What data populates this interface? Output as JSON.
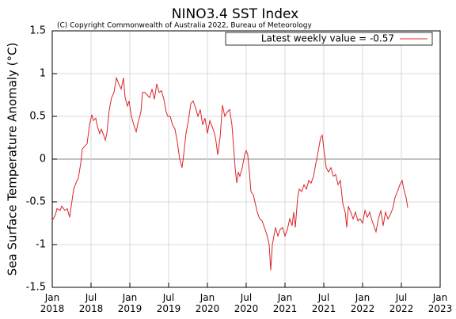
{
  "chart_data": {
    "type": "line",
    "title": "NINO3.4 SST Index",
    "subtitle": "(C) Copyright Commonwealth of Australia 2022, Bureau of Meteorology",
    "ylabel": "Sea Surface Temperature Anomaly (°C)",
    "xlim": [
      2018,
      2023
    ],
    "ylim": [
      -1.5,
      1.5
    ],
    "yticks": [
      -1.5,
      -1,
      -0.5,
      0,
      0.5,
      1,
      1.5
    ],
    "xticks": [
      {
        "value": 2018,
        "label": "Jan\n2018"
      },
      {
        "value": 2018.5,
        "label": "Jul\n2018"
      },
      {
        "value": 2019,
        "label": "Jan\n2019"
      },
      {
        "value": 2019.5,
        "label": "Jul\n2019"
      },
      {
        "value": 2020,
        "label": "Jan\n2020"
      },
      {
        "value": 2020.5,
        "label": "Jul\n2020"
      },
      {
        "value": 2021,
        "label": "Jan\n2021"
      },
      {
        "value": 2021.5,
        "label": "Jul\n2021"
      },
      {
        "value": 2022,
        "label": "Jan\n2022"
      },
      {
        "value": 2022.5,
        "label": "Jul\n2022"
      },
      {
        "value": 2023,
        "label": "Jan\n2023"
      }
    ],
    "grid": true,
    "legend": "upper right",
    "x": [
      2018.0,
      2018.041,
      2018.061,
      2018.102,
      2018.122,
      2018.163,
      2018.194,
      2018.224,
      2018.245,
      2018.276,
      2018.306,
      2018.337,
      2018.367,
      2018.388,
      2018.418,
      2018.449,
      2018.48,
      2018.51,
      2018.531,
      2018.561,
      2018.582,
      2018.612,
      2018.633,
      2018.663,
      2018.684,
      2018.704,
      2018.735,
      2018.765,
      2018.796,
      2018.827,
      2018.857,
      2018.888,
      2018.918,
      2018.939,
      2018.969,
      2018.99,
      2019.02,
      2019.051,
      2019.082,
      2019.112,
      2019.143,
      2019.163,
      2019.194,
      2019.224,
      2019.255,
      2019.286,
      2019.316,
      2019.347,
      2019.378,
      2019.408,
      2019.439,
      2019.469,
      2019.49,
      2019.52,
      2019.551,
      2019.582,
      2019.612,
      2019.643,
      2019.673,
      2019.694,
      2019.724,
      2019.755,
      2019.786,
      2019.816,
      2019.847,
      2019.878,
      2019.908,
      2019.939,
      2019.969,
      2020.0,
      2020.031,
      2020.061,
      2020.092,
      2020.112,
      2020.133,
      2020.163,
      2020.194,
      2020.224,
      2020.255,
      2020.286,
      2020.316,
      2020.337,
      2020.357,
      2020.378,
      2020.398,
      2020.418,
      2020.449,
      2020.48,
      2020.5,
      2020.52,
      2020.541,
      2020.561,
      2020.592,
      2020.612,
      2020.643,
      2020.673,
      2020.704,
      2020.735,
      2020.765,
      2020.796,
      2020.816,
      2020.837,
      2020.857,
      2020.878,
      2020.908,
      2020.939,
      2020.969,
      2021.0,
      2021.031,
      2021.061,
      2021.092,
      2021.112,
      2021.133,
      2021.163,
      2021.184,
      2021.214,
      2021.245,
      2021.276,
      2021.306,
      2021.337,
      2021.367,
      2021.398,
      2021.429,
      2021.459,
      2021.48,
      2021.5,
      2021.531,
      2021.561,
      2021.592,
      2021.622,
      2021.653,
      2021.684,
      2021.714,
      2021.745,
      2021.776,
      2021.796,
      2021.816,
      2021.847,
      2021.878,
      2021.908,
      2021.939,
      2021.969,
      2022.0,
      2022.031,
      2022.061,
      2022.092,
      2022.122,
      2022.153,
      2022.173,
      2022.204,
      2022.235,
      2022.265,
      2022.296,
      2022.327,
      2022.357,
      2022.388,
      2022.418,
      2022.449,
      2022.48,
      2022.51,
      2022.531,
      2022.561,
      2022.582
    ],
    "series": [
      {
        "name": "Latest weekly value = -0.57",
        "color": "#d9262a",
        "values": [
          -0.72,
          -0.65,
          -0.58,
          -0.6,
          -0.55,
          -0.6,
          -0.58,
          -0.68,
          -0.55,
          -0.35,
          -0.28,
          -0.22,
          -0.05,
          0.12,
          0.15,
          0.18,
          0.4,
          0.52,
          0.45,
          0.48,
          0.38,
          0.3,
          0.35,
          0.28,
          0.22,
          0.3,
          0.58,
          0.72,
          0.78,
          0.95,
          0.88,
          0.82,
          0.95,
          0.72,
          0.62,
          0.68,
          0.5,
          0.4,
          0.32,
          0.45,
          0.55,
          0.78,
          0.78,
          0.75,
          0.72,
          0.82,
          0.7,
          0.88,
          0.78,
          0.8,
          0.7,
          0.55,
          0.5,
          0.5,
          0.4,
          0.35,
          0.2,
          0.0,
          -0.1,
          0.05,
          0.3,
          0.45,
          0.65,
          0.68,
          0.6,
          0.5,
          0.58,
          0.4,
          0.48,
          0.3,
          0.45,
          0.38,
          0.3,
          0.2,
          0.05,
          0.25,
          0.63,
          0.5,
          0.55,
          0.58,
          0.4,
          0.15,
          -0.1,
          -0.28,
          -0.15,
          -0.2,
          -0.1,
          0.05,
          0.1,
          0.05,
          -0.15,
          -0.38,
          -0.42,
          -0.5,
          -0.62,
          -0.7,
          -0.72,
          -0.8,
          -0.88,
          -1.0,
          -1.3,
          -1.0,
          -0.9,
          -0.8,
          -0.9,
          -0.82,
          -0.8,
          -0.9,
          -0.82,
          -0.7,
          -0.78,
          -0.62,
          -0.8,
          -0.45,
          -0.35,
          -0.38,
          -0.3,
          -0.35,
          -0.25,
          -0.28,
          -0.2,
          -0.05,
          0.1,
          0.25,
          0.28,
          0.12,
          -0.1,
          -0.15,
          -0.1,
          -0.2,
          -0.18,
          -0.3,
          -0.25,
          -0.52,
          -0.62,
          -0.8,
          -0.55,
          -0.62,
          -0.7,
          -0.62,
          -0.72,
          -0.7,
          -0.75,
          -0.6,
          -0.68,
          -0.62,
          -0.72,
          -0.8,
          -0.85,
          -0.7,
          -0.6,
          -0.78,
          -0.62,
          -0.7,
          -0.65,
          -0.58,
          -0.45,
          -0.38,
          -0.3,
          -0.25,
          -0.35,
          -0.45,
          -0.57
        ]
      }
    ]
  }
}
